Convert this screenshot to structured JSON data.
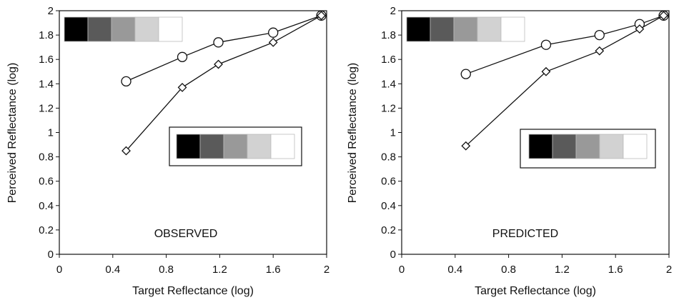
{
  "chart_data": [
    {
      "type": "line",
      "annotation": "OBSERVED",
      "xlabel": "Target Reflectance (log)",
      "ylabel": "Perceived Reflectance (log)",
      "xlim": [
        0,
        2
      ],
      "ylim": [
        0,
        2
      ],
      "x_ticks": [
        "0",
        "0.4",
        "0.8",
        "1.2",
        "1.6",
        "2"
      ],
      "y_ticks": [
        "0",
        "0.2",
        "0.4",
        "0.6",
        "0.8",
        "1",
        "1.2",
        "1.4",
        "1.6",
        "1.8",
        "2"
      ],
      "grid": false,
      "series": [
        {
          "marker": "circle",
          "x": [
            0.5,
            0.92,
            1.19,
            1.6,
            1.96
          ],
          "y": [
            1.42,
            1.62,
            1.74,
            1.82,
            1.96
          ]
        },
        {
          "marker": "diamond",
          "x": [
            0.5,
            0.92,
            1.19,
            1.6,
            1.96
          ],
          "y": [
            0.85,
            1.37,
            1.56,
            1.74,
            1.96
          ]
        }
      ],
      "insets": [
        {
          "placement": "top-left",
          "boxed": false,
          "swatches": [
            "#000000",
            "#5a5a5a",
            "#999999",
            "#d2d2d2",
            "#ffffff"
          ]
        },
        {
          "placement": "middle-right",
          "boxed": true,
          "swatches": [
            "#000000",
            "#5a5a5a",
            "#999999",
            "#d2d2d2",
            "#ffffff"
          ]
        }
      ]
    },
    {
      "type": "line",
      "annotation": "PREDICTED",
      "xlabel": "Target Reflectance (log)",
      "ylabel": "Perceived Reflectance (log)",
      "xlim": [
        0,
        2
      ],
      "ylim": [
        0,
        2
      ],
      "x_ticks": [
        "0",
        "0.4",
        "0.8",
        "1.2",
        "1.6",
        "2"
      ],
      "y_ticks": [
        "0",
        "0.2",
        "0.4",
        "0.6",
        "0.8",
        "1",
        "1.2",
        "1.4",
        "1.6",
        "1.8",
        "2"
      ],
      "grid": false,
      "series": [
        {
          "marker": "circle",
          "x": [
            0.48,
            1.08,
            1.48,
            1.78,
            1.96
          ],
          "y": [
            1.48,
            1.72,
            1.8,
            1.89,
            1.96
          ]
        },
        {
          "marker": "diamond",
          "x": [
            0.48,
            1.08,
            1.48,
            1.78,
            1.96
          ],
          "y": [
            0.89,
            1.5,
            1.67,
            1.85,
            1.96
          ]
        }
      ],
      "insets": [
        {
          "placement": "top-left",
          "boxed": false,
          "swatches": [
            "#000000",
            "#5a5a5a",
            "#999999",
            "#d2d2d2",
            "#ffffff"
          ]
        },
        {
          "placement": "middle-right",
          "boxed": true,
          "swatches": [
            "#000000",
            "#5a5a5a",
            "#999999",
            "#d2d2d2",
            "#ffffff"
          ]
        }
      ]
    }
  ]
}
